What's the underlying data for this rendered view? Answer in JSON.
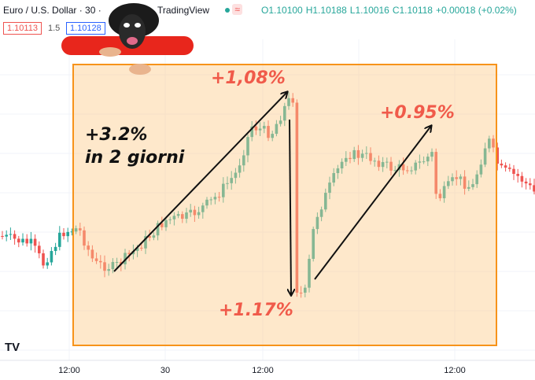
{
  "header": {
    "symbol": "Euro / U.S. Dollar · 30 ·",
    "brand": "TradingView",
    "ohlc": [
      "O1.10100",
      "H1.10188",
      "L1.10016",
      "C1.10118",
      "+0.00018 (+0.02%)"
    ],
    "bid": "1.10113",
    "spread": "1.5",
    "ask": "1.10128"
  },
  "annotations": {
    "peak": "+1,08%",
    "rise": "+3.2%",
    "period": "in 2 giorni",
    "rebound": "+0.95%",
    "drop": "+1.17%"
  },
  "x_axis": [
    "12:00",
    "30",
    "12:00",
    "12:00"
  ],
  "logo": "TV"
}
